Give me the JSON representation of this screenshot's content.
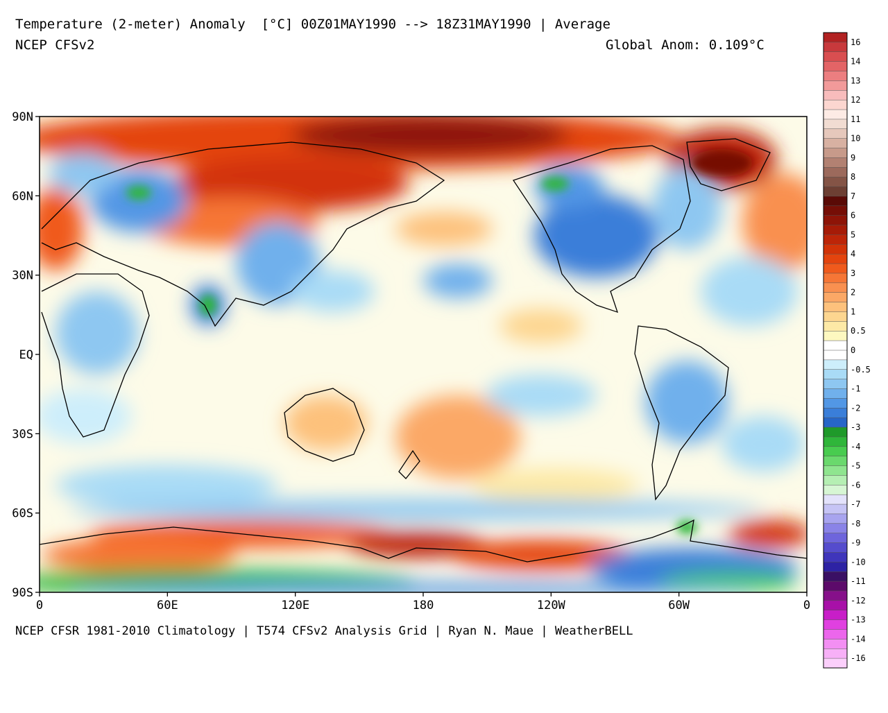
{
  "header": {
    "title": "Temperature (2-meter) Anomaly  [°C] 00Z01MAY1990 --> 18Z31MAY1990 | Average",
    "model": "NCEP CFSv2",
    "global_anom": "Global Anom: 0.109°C"
  },
  "footer": {
    "credits": "NCEP CFSR 1981-2010 Climatology | T574 CFSv2 Analysis Grid | Ryan N. Maue | WeatherBELL"
  },
  "axes": {
    "x_ticks": [
      {
        "label": "0",
        "lon": 0
      },
      {
        "label": "60E",
        "lon": 60
      },
      {
        "label": "120E",
        "lon": 120
      },
      {
        "label": "180",
        "lon": 180
      },
      {
        "label": "120W",
        "lon": 240
      },
      {
        "label": "60W",
        "lon": 300
      },
      {
        "label": "0",
        "lon": 360
      }
    ],
    "y_ticks": [
      {
        "label": "90N",
        "lat": 90
      },
      {
        "label": "60N",
        "lat": 60
      },
      {
        "label": "30N",
        "lat": 30
      },
      {
        "label": "EQ",
        "lat": 0
      },
      {
        "label": "30S",
        "lat": -30
      },
      {
        "label": "60S",
        "lat": -60
      },
      {
        "label": "90S",
        "lat": -90
      }
    ]
  },
  "colorbar": {
    "bins": [
      {
        "label": "16",
        "color": "#b22222"
      },
      {
        "label": "",
        "color": "#c8393c"
      },
      {
        "label": "14",
        "color": "#d94e50"
      },
      {
        "label": "",
        "color": "#e36466"
      },
      {
        "label": "13",
        "color": "#ec7e80"
      },
      {
        "label": "",
        "color": "#f29a9a"
      },
      {
        "label": "12",
        "color": "#f8bcbc"
      },
      {
        "label": "",
        "color": "#fcd6d0"
      },
      {
        "label": "11",
        "color": "#fdebe5"
      },
      {
        "label": "",
        "color": "#f1dcd2"
      },
      {
        "label": "10",
        "color": "#e6c8bc"
      },
      {
        "label": "",
        "color": "#d8b1a2"
      },
      {
        "label": "9",
        "color": "#c79a8a"
      },
      {
        "label": "",
        "color": "#b28172"
      },
      {
        "label": "8",
        "color": "#9c6a5c"
      },
      {
        "label": "",
        "color": "#845446"
      },
      {
        "label": "7",
        "color": "#6d3f33"
      },
      {
        "label": "",
        "color": "#5a0a06"
      },
      {
        "label": "6",
        "color": "#760e06"
      },
      {
        "label": "",
        "color": "#8e1407"
      },
      {
        "label": "5",
        "color": "#a61b07"
      },
      {
        "label": "",
        "color": "#bd2508"
      },
      {
        "label": "4",
        "color": "#d23308"
      },
      {
        "label": "",
        "color": "#e4440e"
      },
      {
        "label": "3",
        "color": "#f05a1c"
      },
      {
        "label": "",
        "color": "#f67636"
      },
      {
        "label": "2",
        "color": "#f99050"
      },
      {
        "label": "",
        "color": "#fba866"
      },
      {
        "label": "1",
        "color": "#fdc17c"
      },
      {
        "label": "",
        "color": "#fdd690"
      },
      {
        "label": "0.5",
        "color": "#fde9a6"
      },
      {
        "label": "",
        "color": "#fdf8c0"
      },
      {
        "label": "0",
        "color": "#ffffff"
      },
      {
        "label": "",
        "color": "#ffffff"
      },
      {
        "label": "-0.5",
        "color": "#cdeefb"
      },
      {
        "label": "",
        "color": "#a9dbf6"
      },
      {
        "label": "-1",
        "color": "#8ec7f1"
      },
      {
        "label": "",
        "color": "#70b0ec"
      },
      {
        "label": "-2",
        "color": "#5297e5"
      },
      {
        "label": "",
        "color": "#3a7ed9"
      },
      {
        "label": "-3",
        "color": "#2766c8"
      },
      {
        "label": "",
        "color": "#1f9a2a"
      },
      {
        "label": "-4",
        "color": "#2fb63a"
      },
      {
        "label": "",
        "color": "#48cc4f"
      },
      {
        "label": "-5",
        "color": "#6ad96d"
      },
      {
        "label": "",
        "color": "#8fe58f"
      },
      {
        "label": "-6",
        "color": "#b5efb3"
      },
      {
        "label": "",
        "color": "#d7f6d4"
      },
      {
        "label": "-7",
        "color": "#e3e2fb"
      },
      {
        "label": "",
        "color": "#c6c4f5"
      },
      {
        "label": "-8",
        "color": "#a8a4ef"
      },
      {
        "label": "",
        "color": "#8a83e7"
      },
      {
        "label": "-9",
        "color": "#6e65dc"
      },
      {
        "label": "",
        "color": "#554ccd"
      },
      {
        "label": "-10",
        "color": "#3f35bb"
      },
      {
        "label": "",
        "color": "#2d22a4"
      },
      {
        "label": "-11",
        "color": "#3a1064"
      },
      {
        "label": "",
        "color": "#5c0a6a"
      },
      {
        "label": "-12",
        "color": "#86108a"
      },
      {
        "label": "",
        "color": "#a810a8"
      },
      {
        "label": "-13",
        "color": "#c81ec8"
      },
      {
        "label": "",
        "color": "#e040e0"
      },
      {
        "label": "-14",
        "color": "#ec66ec"
      },
      {
        "label": "",
        "color": "#f38ff3"
      },
      {
        "label": "-16",
        "color": "#f7b0f7"
      },
      {
        "label": "",
        "color": "#fbcffb"
      }
    ]
  }
}
